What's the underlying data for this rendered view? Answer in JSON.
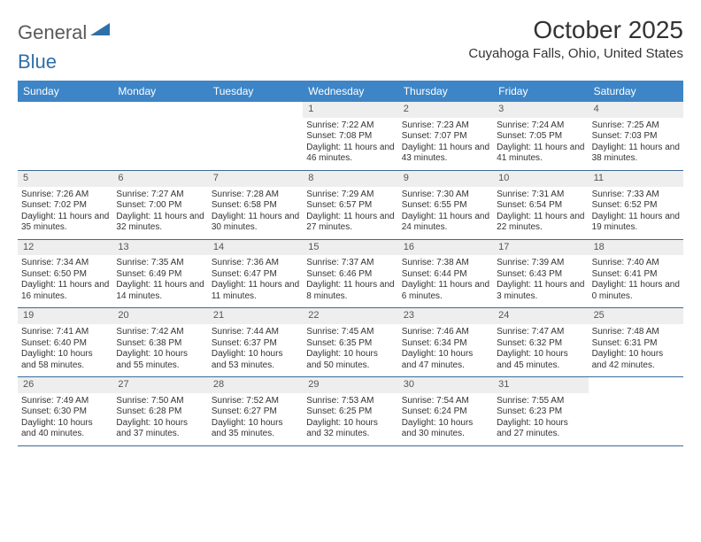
{
  "logo": {
    "word1": "General",
    "word2": "Blue"
  },
  "title": "October 2025",
  "location": "Cuyahoga Falls, Ohio, United States",
  "colors": {
    "header_bg": "#3d85c6",
    "header_text": "#ffffff",
    "daynum_bg": "#eeeeee",
    "week_border": "#3d6a96",
    "logo_gray": "#5a5a5a",
    "logo_blue": "#2f6fa8",
    "text": "#333333",
    "background": "#ffffff"
  },
  "day_names": [
    "Sunday",
    "Monday",
    "Tuesday",
    "Wednesday",
    "Thursday",
    "Friday",
    "Saturday"
  ],
  "weeks": [
    [
      {
        "n": "",
        "sr": "",
        "ss": "",
        "dl": ""
      },
      {
        "n": "",
        "sr": "",
        "ss": "",
        "dl": ""
      },
      {
        "n": "",
        "sr": "",
        "ss": "",
        "dl": ""
      },
      {
        "n": "1",
        "sr": "Sunrise: 7:22 AM",
        "ss": "Sunset: 7:08 PM",
        "dl": "Daylight: 11 hours and 46 minutes."
      },
      {
        "n": "2",
        "sr": "Sunrise: 7:23 AM",
        "ss": "Sunset: 7:07 PM",
        "dl": "Daylight: 11 hours and 43 minutes."
      },
      {
        "n": "3",
        "sr": "Sunrise: 7:24 AM",
        "ss": "Sunset: 7:05 PM",
        "dl": "Daylight: 11 hours and 41 minutes."
      },
      {
        "n": "4",
        "sr": "Sunrise: 7:25 AM",
        "ss": "Sunset: 7:03 PM",
        "dl": "Daylight: 11 hours and 38 minutes."
      }
    ],
    [
      {
        "n": "5",
        "sr": "Sunrise: 7:26 AM",
        "ss": "Sunset: 7:02 PM",
        "dl": "Daylight: 11 hours and 35 minutes."
      },
      {
        "n": "6",
        "sr": "Sunrise: 7:27 AM",
        "ss": "Sunset: 7:00 PM",
        "dl": "Daylight: 11 hours and 32 minutes."
      },
      {
        "n": "7",
        "sr": "Sunrise: 7:28 AM",
        "ss": "Sunset: 6:58 PM",
        "dl": "Daylight: 11 hours and 30 minutes."
      },
      {
        "n": "8",
        "sr": "Sunrise: 7:29 AM",
        "ss": "Sunset: 6:57 PM",
        "dl": "Daylight: 11 hours and 27 minutes."
      },
      {
        "n": "9",
        "sr": "Sunrise: 7:30 AM",
        "ss": "Sunset: 6:55 PM",
        "dl": "Daylight: 11 hours and 24 minutes."
      },
      {
        "n": "10",
        "sr": "Sunrise: 7:31 AM",
        "ss": "Sunset: 6:54 PM",
        "dl": "Daylight: 11 hours and 22 minutes."
      },
      {
        "n": "11",
        "sr": "Sunrise: 7:33 AM",
        "ss": "Sunset: 6:52 PM",
        "dl": "Daylight: 11 hours and 19 minutes."
      }
    ],
    [
      {
        "n": "12",
        "sr": "Sunrise: 7:34 AM",
        "ss": "Sunset: 6:50 PM",
        "dl": "Daylight: 11 hours and 16 minutes."
      },
      {
        "n": "13",
        "sr": "Sunrise: 7:35 AM",
        "ss": "Sunset: 6:49 PM",
        "dl": "Daylight: 11 hours and 14 minutes."
      },
      {
        "n": "14",
        "sr": "Sunrise: 7:36 AM",
        "ss": "Sunset: 6:47 PM",
        "dl": "Daylight: 11 hours and 11 minutes."
      },
      {
        "n": "15",
        "sr": "Sunrise: 7:37 AM",
        "ss": "Sunset: 6:46 PM",
        "dl": "Daylight: 11 hours and 8 minutes."
      },
      {
        "n": "16",
        "sr": "Sunrise: 7:38 AM",
        "ss": "Sunset: 6:44 PM",
        "dl": "Daylight: 11 hours and 6 minutes."
      },
      {
        "n": "17",
        "sr": "Sunrise: 7:39 AM",
        "ss": "Sunset: 6:43 PM",
        "dl": "Daylight: 11 hours and 3 minutes."
      },
      {
        "n": "18",
        "sr": "Sunrise: 7:40 AM",
        "ss": "Sunset: 6:41 PM",
        "dl": "Daylight: 11 hours and 0 minutes."
      }
    ],
    [
      {
        "n": "19",
        "sr": "Sunrise: 7:41 AM",
        "ss": "Sunset: 6:40 PM",
        "dl": "Daylight: 10 hours and 58 minutes."
      },
      {
        "n": "20",
        "sr": "Sunrise: 7:42 AM",
        "ss": "Sunset: 6:38 PM",
        "dl": "Daylight: 10 hours and 55 minutes."
      },
      {
        "n": "21",
        "sr": "Sunrise: 7:44 AM",
        "ss": "Sunset: 6:37 PM",
        "dl": "Daylight: 10 hours and 53 minutes."
      },
      {
        "n": "22",
        "sr": "Sunrise: 7:45 AM",
        "ss": "Sunset: 6:35 PM",
        "dl": "Daylight: 10 hours and 50 minutes."
      },
      {
        "n": "23",
        "sr": "Sunrise: 7:46 AM",
        "ss": "Sunset: 6:34 PM",
        "dl": "Daylight: 10 hours and 47 minutes."
      },
      {
        "n": "24",
        "sr": "Sunrise: 7:47 AM",
        "ss": "Sunset: 6:32 PM",
        "dl": "Daylight: 10 hours and 45 minutes."
      },
      {
        "n": "25",
        "sr": "Sunrise: 7:48 AM",
        "ss": "Sunset: 6:31 PM",
        "dl": "Daylight: 10 hours and 42 minutes."
      }
    ],
    [
      {
        "n": "26",
        "sr": "Sunrise: 7:49 AM",
        "ss": "Sunset: 6:30 PM",
        "dl": "Daylight: 10 hours and 40 minutes."
      },
      {
        "n": "27",
        "sr": "Sunrise: 7:50 AM",
        "ss": "Sunset: 6:28 PM",
        "dl": "Daylight: 10 hours and 37 minutes."
      },
      {
        "n": "28",
        "sr": "Sunrise: 7:52 AM",
        "ss": "Sunset: 6:27 PM",
        "dl": "Daylight: 10 hours and 35 minutes."
      },
      {
        "n": "29",
        "sr": "Sunrise: 7:53 AM",
        "ss": "Sunset: 6:25 PM",
        "dl": "Daylight: 10 hours and 32 minutes."
      },
      {
        "n": "30",
        "sr": "Sunrise: 7:54 AM",
        "ss": "Sunset: 6:24 PM",
        "dl": "Daylight: 10 hours and 30 minutes."
      },
      {
        "n": "31",
        "sr": "Sunrise: 7:55 AM",
        "ss": "Sunset: 6:23 PM",
        "dl": "Daylight: 10 hours and 27 minutes."
      },
      {
        "n": "",
        "sr": "",
        "ss": "",
        "dl": ""
      }
    ]
  ]
}
